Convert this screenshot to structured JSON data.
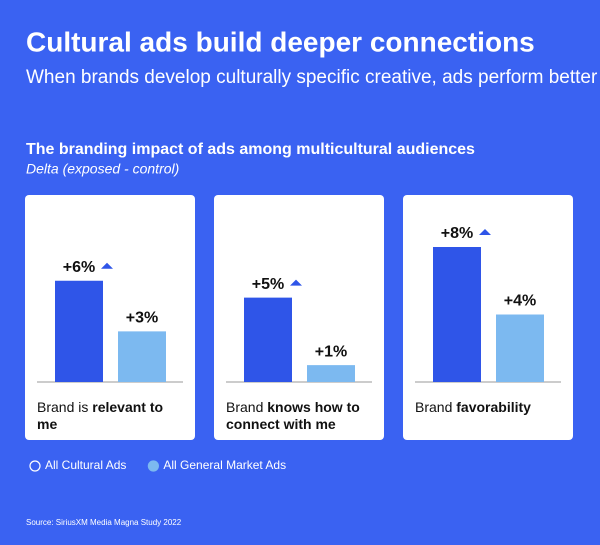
{
  "header": {
    "title": "Cultural ads build deeper connections",
    "subtitle": "When brands develop culturally specific creative, ads perform better"
  },
  "chart_data": {
    "type": "bar",
    "title": "The branding impact of ads among multicultural audiences",
    "subtitle": "Delta (exposed - control)",
    "categories": [
      [
        "Brand is",
        "relevant to me"
      ],
      [
        "Brand",
        "knows how to connect with me"
      ],
      [
        "Brand",
        "favorability"
      ]
    ],
    "series": [
      {
        "name": "All Cultural Ads",
        "color": "#2f55e8",
        "values": [
          6,
          5,
          8
        ],
        "value_labels": [
          "+6%",
          "+5%",
          "+8%"
        ]
      },
      {
        "name": "All General Market Ads",
        "color": "#7cb9f0",
        "values": [
          3,
          1,
          4
        ],
        "value_labels": [
          "+3%",
          "+1%",
          "+4%"
        ]
      }
    ],
    "ylim": [
      0,
      8
    ],
    "source": "Source: SiriusXM Media Magna Study 2022"
  }
}
